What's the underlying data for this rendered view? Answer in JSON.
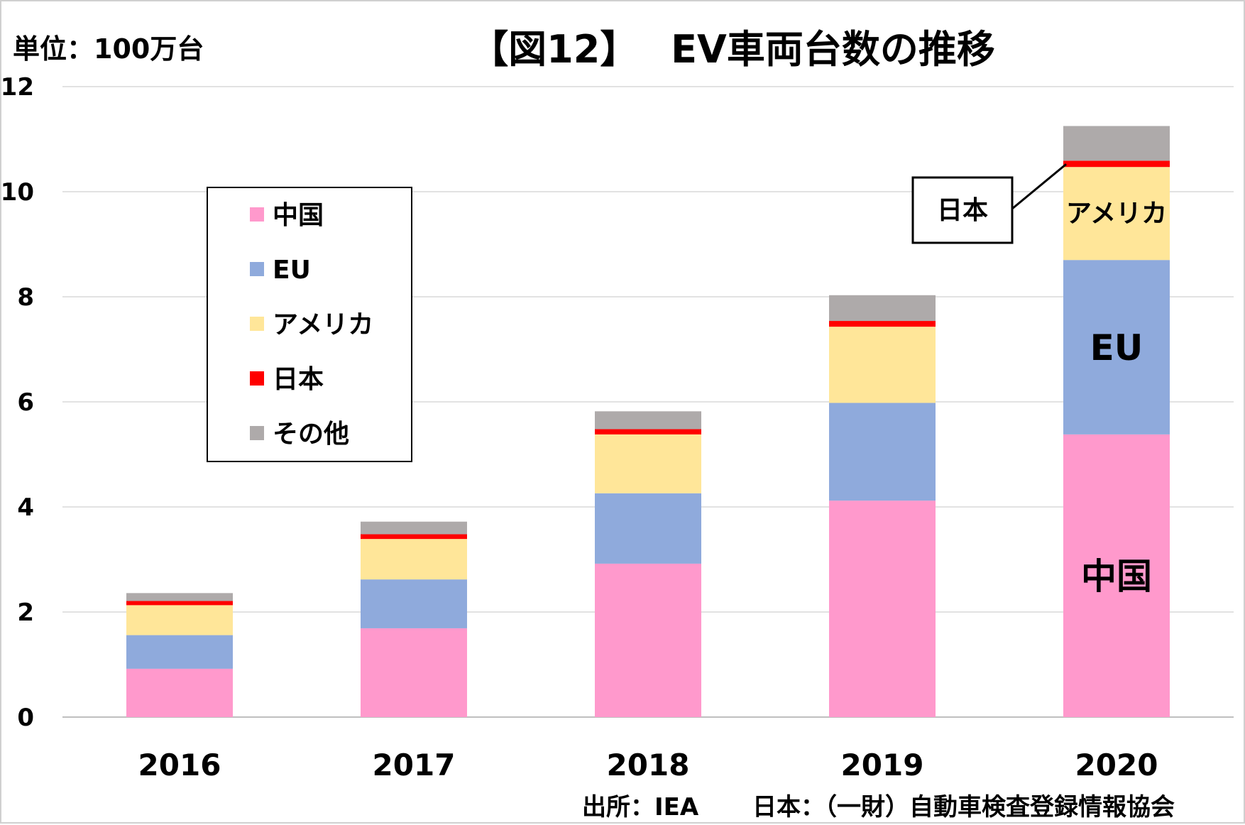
{
  "title": "【図12】　 EV車両台数の推移",
  "unit_label": "単位：100万台",
  "source": {
    "text1": "出所：IEA",
    "text2": "日本：（一財）自動車検査登録情報協会"
  },
  "callout_label": "日本",
  "in_bar_labels": [
    "中国",
    "EU",
    "アメリカ"
  ],
  "chart_data": {
    "type": "bar",
    "stacked": true,
    "categories": [
      "2016",
      "2017",
      "2018",
      "2019",
      "2020"
    ],
    "series": [
      {
        "name": "中国",
        "color": "#ff99cc",
        "values": [
          0.92,
          1.69,
          2.92,
          4.12,
          5.38
        ]
      },
      {
        "name": "EU",
        "color": "#8faadc",
        "values": [
          0.64,
          0.93,
          1.34,
          1.86,
          3.32
        ]
      },
      {
        "name": "アメリカ",
        "color": "#ffe699",
        "values": [
          0.57,
          0.77,
          1.12,
          1.45,
          1.77
        ]
      },
      {
        "name": "日本",
        "color": "#ff0000",
        "values": [
          0.08,
          0.09,
          0.1,
          0.11,
          0.12
        ]
      },
      {
        "name": "その他",
        "color": "#aeaaaa",
        "values": [
          0.15,
          0.24,
          0.34,
          0.49,
          0.66
        ]
      }
    ],
    "yticks": [
      "0",
      "2",
      "4",
      "6",
      "8",
      "10",
      "12"
    ],
    "ylim": [
      0,
      12
    ],
    "grid": true,
    "legend": "upper-left"
  }
}
